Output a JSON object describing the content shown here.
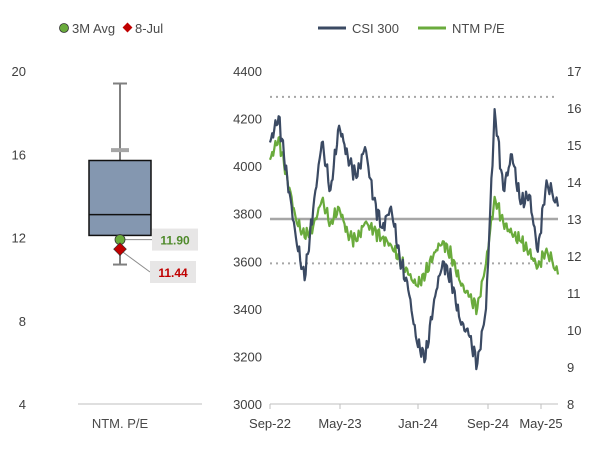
{
  "colors": {
    "csi": "#3b4a63",
    "pe": "#6aab3c",
    "box_fill": "#8497b0",
    "box_stroke": "#111111",
    "whisker": "#7f7f7f",
    "avg_marker": "#6aab3c",
    "last_marker": "#c00000",
    "avg_label": "#4f8a2b",
    "last_label": "#c00000",
    "mean_line": "#a6a6a6",
    "band_line": "#a6a6a6",
    "axis_text": "#404040",
    "label_bg": "#e7e6e6"
  },
  "chart_data": [
    {
      "type": "box",
      "title": "",
      "category": "NTM. P/E",
      "ylim": [
        4,
        20
      ],
      "yticks": [
        "4",
        "8",
        "12",
        "16",
        "20"
      ],
      "stats": {
        "min": 10.7,
        "q1": 12.1,
        "median": 13.1,
        "q3": 15.7,
        "max": 19.4,
        "upper_mark": 16.2
      },
      "legend": [
        {
          "name": "3M Avg",
          "marker": "circle"
        },
        {
          "name": "8-Jul",
          "marker": "diamond"
        }
      ],
      "points": [
        {
          "name": "3M Avg",
          "value": 11.9,
          "label": "11.90"
        },
        {
          "name": "8-Jul",
          "value": 11.44,
          "label": "11.44"
        }
      ]
    },
    {
      "type": "line",
      "title": "",
      "legend": [
        "CSI 300",
        "NTM P/E"
      ],
      "x_ticks": [
        "Sep-22",
        "May-23",
        "Jan-24",
        "Sep-24",
        "May-25"
      ],
      "y_left": {
        "range": [
          3000,
          4400
        ],
        "ticks": [
          "3000",
          "3200",
          "3400",
          "3600",
          "3800",
          "4000",
          "4200",
          "4400"
        ]
      },
      "y_right": {
        "range": [
          8,
          17
        ],
        "ticks": [
          "8",
          "9",
          "10",
          "11",
          "12",
          "13",
          "14",
          "15",
          "16",
          "17"
        ]
      },
      "reference_lines": {
        "mean_pe": 13.0,
        "upper_band_pe": 16.3,
        "lower_band_pe": 11.8
      },
      "series": [
        {
          "name": "CSI 300",
          "axis": "left",
          "x_frac": [
            0,
            0.03,
            0.06,
            0.09,
            0.12,
            0.15,
            0.18,
            0.21,
            0.24,
            0.27,
            0.3,
            0.33,
            0.36,
            0.39,
            0.42,
            0.45,
            0.48,
            0.51,
            0.54,
            0.57,
            0.6,
            0.63,
            0.66,
            0.69,
            0.72,
            0.75,
            0.78,
            0.81,
            0.84,
            0.87,
            0.9,
            0.93,
            0.96,
            1.0
          ],
          "values": [
            4100,
            4210,
            3950,
            3700,
            3520,
            3820,
            4100,
            3900,
            4170,
            4040,
            3950,
            4080,
            3860,
            3740,
            3830,
            3620,
            3480,
            3260,
            3190,
            3440,
            3600,
            3520,
            3350,
            3290,
            3170,
            3400,
            4240,
            3900,
            4050,
            3840,
            3880,
            3640,
            3940,
            3830
          ]
        },
        {
          "name": "NTM P/E",
          "axis": "right",
          "x_frac": [
            0,
            0.03,
            0.06,
            0.09,
            0.12,
            0.15,
            0.18,
            0.21,
            0.24,
            0.27,
            0.3,
            0.33,
            0.36,
            0.39,
            0.42,
            0.45,
            0.48,
            0.51,
            0.54,
            0.57,
            0.6,
            0.63,
            0.66,
            0.69,
            0.72,
            0.75,
            0.78,
            0.81,
            0.84,
            0.87,
            0.9,
            0.93,
            0.96,
            1.0
          ],
          "values": [
            14.6,
            15.2,
            14.1,
            13.0,
            12.5,
            12.8,
            13.5,
            12.9,
            13.3,
            12.6,
            12.4,
            12.9,
            12.7,
            12.5,
            12.3,
            11.9,
            11.5,
            11.2,
            11.5,
            12.1,
            12.4,
            12.0,
            11.3,
            10.9,
            10.6,
            11.8,
            13.6,
            12.9,
            12.6,
            12.4,
            12.1,
            11.7,
            12.2,
            11.5
          ]
        }
      ]
    }
  ]
}
